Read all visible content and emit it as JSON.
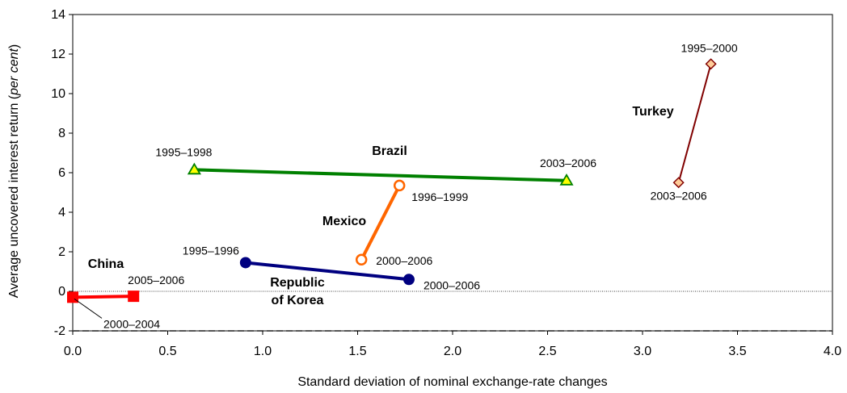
{
  "chart_data": {
    "type": "line",
    "xlabel": "Standard deviation of nominal exchange-rate changes",
    "ylabel_parts": [
      "Average uncovered interest return (",
      "per cent",
      ")"
    ],
    "xlim": [
      0,
      4
    ],
    "ylim": [
      -2,
      14
    ],
    "x_ticks": [
      0.0,
      0.5,
      1.0,
      1.5,
      2.0,
      2.5,
      3.0,
      3.5,
      4.0
    ],
    "x_tick_labels": [
      "0.0",
      "0.5",
      "1.0",
      "1.5",
      "2.0",
      "2.5",
      "3.0",
      "3.5",
      "4.0"
    ],
    "y_ticks": [
      -2,
      0,
      2,
      4,
      6,
      8,
      10,
      12,
      14
    ],
    "y_tick_labels": [
      "-2",
      "0",
      "2",
      "4",
      "6",
      "8",
      "10",
      "12",
      "14"
    ],
    "zero_line": true,
    "grid": false,
    "series": [
      {
        "name": "China",
        "color": "#ff0000",
        "marker": "square",
        "points": [
          {
            "x": 0.0,
            "y": -0.3,
            "label": "2000–2004"
          },
          {
            "x": 0.32,
            "y": -0.25,
            "label": "2005–2006"
          }
        ]
      },
      {
        "name": "Republic of Korea",
        "name_lines": [
          "Republic",
          "of Korea"
        ],
        "color": "#000080",
        "marker": "circle",
        "points": [
          {
            "x": 0.91,
            "y": 1.45,
            "label": "1995–1996"
          },
          {
            "x": 1.77,
            "y": 0.6,
            "label": "2000–2006"
          }
        ]
      },
      {
        "name": "Mexico",
        "color": "#ff6600",
        "marker": "open-circle",
        "points": [
          {
            "x": 1.52,
            "y": 1.6,
            "label": "2000–2006"
          },
          {
            "x": 1.72,
            "y": 5.35,
            "label": "1996–1999"
          }
        ]
      },
      {
        "name": "Brazil",
        "color": "#008000",
        "marker": "triangle",
        "points": [
          {
            "x": 0.64,
            "y": 6.15,
            "label": "1995–1998"
          },
          {
            "x": 2.6,
            "y": 5.6,
            "label": "2003–2006"
          }
        ]
      },
      {
        "name": "Turkey",
        "color": "#800000",
        "marker": "diamond",
        "points": [
          {
            "x": 3.19,
            "y": 5.5,
            "label": "2003–2006"
          },
          {
            "x": 3.36,
            "y": 11.5,
            "label": "1995–2000"
          }
        ]
      }
    ]
  }
}
